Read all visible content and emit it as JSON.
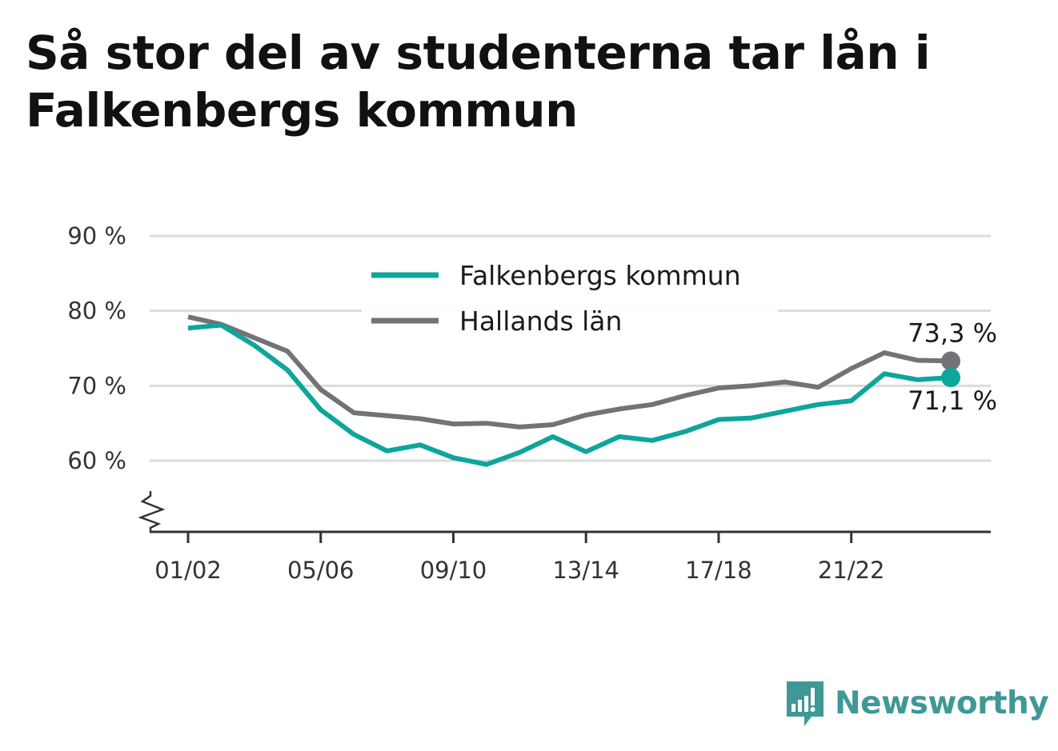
{
  "title": "Så stor del av studenterna tar lån i Falkenbergs kommun",
  "brand": {
    "name": "Newsworthy",
    "color": "#3f9896",
    "icon": "bar-chart-speech-bubble-icon"
  },
  "chart_data": {
    "type": "line",
    "title": "Så stor del av studenterna tar lån i Falkenbergs kommun",
    "xlabel": "",
    "ylabel": "",
    "ylim": [
      50,
      90
    ],
    "y_ticks": [
      60,
      70,
      80,
      90
    ],
    "y_tick_labels": [
      "60 %",
      "70 %",
      "80 %",
      "90 %"
    ],
    "y_axis_break": true,
    "grid": true,
    "legend_position": "top-center",
    "x": [
      "01/02",
      "02/03",
      "03/04",
      "04/05",
      "05/06",
      "06/07",
      "07/08",
      "08/09",
      "09/10",
      "10/11",
      "11/12",
      "12/13",
      "13/14",
      "14/15",
      "15/16",
      "16/17",
      "17/18",
      "18/19",
      "19/20",
      "20/21",
      "21/22",
      "22/23",
      "23/24",
      "24/25"
    ],
    "x_tick_labels": [
      "01/02",
      "05/06",
      "09/10",
      "13/14",
      "17/18",
      "21/22"
    ],
    "series": [
      {
        "name": "Falkenbergs kommun",
        "color": "#0ea59b",
        "values": [
          77.7,
          78.1,
          75.4,
          72.1,
          66.8,
          63.5,
          61.3,
          62.1,
          60.4,
          59.5,
          61.1,
          63.2,
          61.2,
          63.2,
          62.7,
          63.9,
          65.5,
          65.7,
          66.6,
          67.5,
          68.0,
          71.6,
          70.8,
          71.1
        ],
        "end_label": "71,1 %"
      },
      {
        "name": "Hallands län",
        "color": "#737278",
        "values": [
          79.2,
          78.2,
          76.4,
          74.6,
          69.5,
          66.4,
          66.0,
          65.6,
          64.9,
          65.0,
          64.5,
          64.8,
          66.1,
          66.9,
          67.5,
          68.7,
          69.7,
          70.0,
          70.5,
          69.8,
          72.3,
          74.4,
          73.4,
          73.3
        ],
        "end_label": "73,3 %"
      }
    ]
  }
}
